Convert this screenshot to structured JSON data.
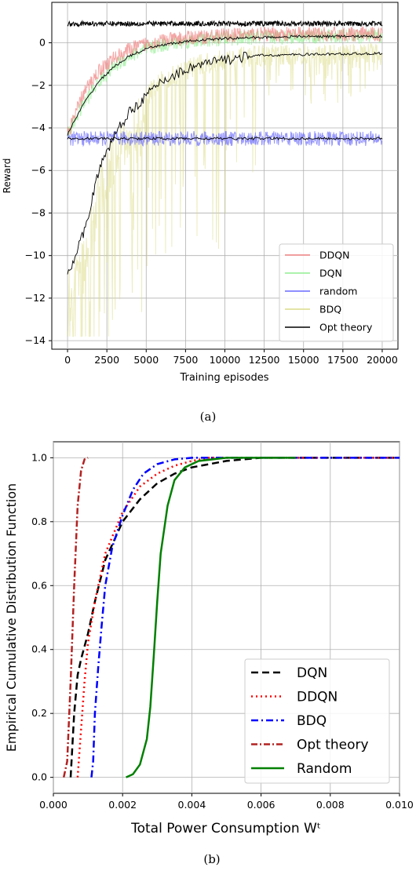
{
  "charts": [
    {
      "caption": "(a)",
      "xlabel": "Training episodes",
      "ylabel": "Reward",
      "xticks": [
        "0",
        "2500",
        "5000",
        "7500",
        "10000",
        "12500",
        "15000",
        "17500",
        "20000"
      ],
      "yticks": [
        "0",
        "−2",
        "−4",
        "−6",
        "−8",
        "−10",
        "−12",
        "−14"
      ],
      "legend": [
        "DDQN",
        "DQN",
        "random",
        "BDQ",
        "Opt theory"
      ]
    },
    {
      "caption": "(b)",
      "xlabel": "Total Power Consumption Wᵗ",
      "ylabel": "Empirical Cumulative Distribution Function",
      "xticks": [
        "0.000",
        "0.002",
        "0.004",
        "0.006",
        "0.008",
        "0.010"
      ],
      "yticks": [
        "0.0",
        "0.2",
        "0.4",
        "0.6",
        "0.8",
        "1.0"
      ],
      "legend": [
        "DQN",
        "DDQN",
        "BDQ",
        "Opt theory",
        "Random"
      ]
    }
  ],
  "chart_data": [
    {
      "type": "line",
      "xlabel": "Training episodes",
      "ylabel": "Reward",
      "xlim": [
        -1000,
        21000
      ],
      "ylim": [
        -14.4,
        1.9
      ],
      "grid": true,
      "legend_position": "lower-right",
      "series": [
        {
          "name": "DDQN",
          "color": "#f08080",
          "x": [
            0,
            1000,
            2000,
            3000,
            4000,
            5000,
            6000,
            8000,
            10000,
            12000,
            15000,
            20000
          ],
          "values": [
            -4.3,
            -2.4,
            -1.3,
            -0.7,
            -0.3,
            -0.05,
            0.1,
            0.25,
            0.35,
            0.4,
            0.4,
            0.4
          ]
        },
        {
          "name": "DQN",
          "color": "#90ee90",
          "x": [
            0,
            1000,
            2000,
            3000,
            4000,
            5000,
            6000,
            8000,
            10000,
            12000,
            15000,
            20000
          ],
          "values": [
            -4.3,
            -2.9,
            -1.8,
            -1.1,
            -0.6,
            -0.3,
            -0.1,
            0.1,
            0.2,
            0.25,
            0.3,
            0.3
          ]
        },
        {
          "name": "random",
          "color": "#6a6aff",
          "x": [
            0,
            5000,
            10000,
            15000,
            20000
          ],
          "values": [
            -4.5,
            -4.5,
            -4.5,
            -4.5,
            -4.5
          ]
        },
        {
          "name": "BDQ",
          "color": "#dcdc8a",
          "x": [
            0,
            500,
            1000,
            2000,
            3000,
            4000,
            5000,
            6000,
            8000,
            10000,
            12000,
            15000,
            20000
          ],
          "values": [
            -10.8,
            -10.0,
            -9.0,
            -6.0,
            -4.3,
            -3.2,
            -2.5,
            -1.8,
            -1.1,
            -0.8,
            -0.6,
            -0.55,
            -0.5
          ]
        },
        {
          "name": "Opt theory",
          "color": "#000000",
          "x": [
            0,
            20000
          ],
          "values": [
            0.9,
            0.9
          ]
        }
      ]
    },
    {
      "type": "line",
      "xlabel": "Total Power Consumption Wᵗ",
      "ylabel": "Empirical Cumulative Distribution Function",
      "xlim": [
        0,
        0.01
      ],
      "ylim": [
        -0.05,
        1.05
      ],
      "grid": true,
      "legend_position": "lower-right",
      "series": [
        {
          "name": "DQN",
          "color": "#000000",
          "x": [
            0.0005,
            0.0006,
            0.0007,
            0.0008,
            0.001,
            0.0012,
            0.0015,
            0.002,
            0.0025,
            0.003,
            0.0035,
            0.004,
            0.005,
            0.006,
            0.0065,
            0.0075,
            0.01
          ],
          "values": [
            0,
            0.2,
            0.32,
            0.37,
            0.45,
            0.55,
            0.68,
            0.8,
            0.87,
            0.92,
            0.95,
            0.97,
            0.99,
            1.0,
            1.0,
            1.0,
            1.0
          ]
        },
        {
          "name": "DDQN",
          "color": "#ff0000",
          "x": [
            0.0007,
            0.0008,
            0.0009,
            0.001,
            0.0012,
            0.0015,
            0.002,
            0.0025,
            0.003,
            0.0035,
            0.004,
            0.0045,
            0.0055,
            0.0065,
            0.0075,
            0.01
          ],
          "values": [
            0,
            0.15,
            0.3,
            0.42,
            0.55,
            0.7,
            0.83,
            0.91,
            0.95,
            0.975,
            0.99,
            1.0,
            1.0,
            1.0,
            1.0,
            1.0
          ]
        },
        {
          "name": "BDQ",
          "color": "#0000ff",
          "x": [
            0.0011,
            0.00115,
            0.0012,
            0.0013,
            0.0014,
            0.0015,
            0.0017,
            0.002,
            0.0023,
            0.0026,
            0.003,
            0.0035,
            0.004,
            0.0075,
            0.01
          ],
          "values": [
            0,
            0.05,
            0.2,
            0.35,
            0.48,
            0.6,
            0.72,
            0.82,
            0.9,
            0.95,
            0.98,
            0.995,
            1.0,
            1.0,
            1.0
          ]
        },
        {
          "name": "Opt theory",
          "color": "#b22222",
          "x": [
            0.0003,
            0.0004,
            0.0005,
            0.0006,
            0.0007,
            0.0008,
            0.0009,
            0.001
          ],
          "values": [
            0,
            0.05,
            0.3,
            0.6,
            0.85,
            0.96,
            0.995,
            1.0
          ]
        },
        {
          "name": "Random",
          "color": "#008000",
          "x": [
            0.0021,
            0.0023,
            0.0025,
            0.0027,
            0.0028,
            0.0029,
            0.003,
            0.0031,
            0.0033,
            0.0035,
            0.0038,
            0.0042,
            0.005,
            0.007
          ],
          "values": [
            0,
            0.01,
            0.04,
            0.12,
            0.22,
            0.38,
            0.55,
            0.7,
            0.85,
            0.93,
            0.97,
            0.99,
            1.0,
            1.0
          ]
        }
      ]
    }
  ]
}
